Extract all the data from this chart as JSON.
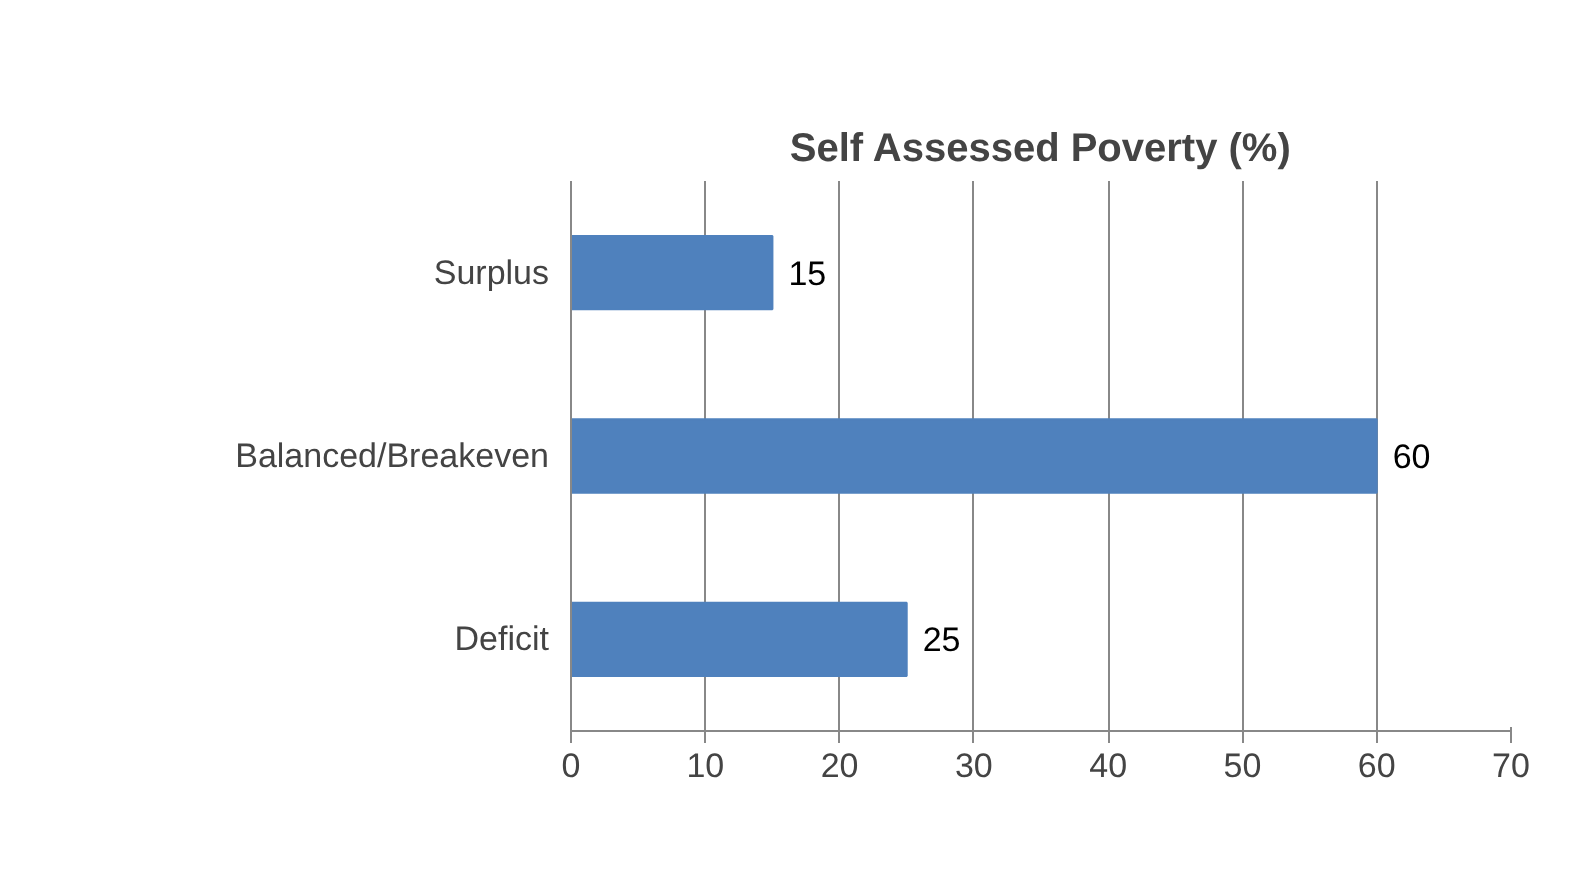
{
  "chart_data": {
    "type": "bar",
    "orientation": "horizontal",
    "title": "Self Assessed Poverty (%)",
    "categories": [
      "Surplus",
      "Balanced/Breakeven",
      "Deficit"
    ],
    "values": [
      15,
      60,
      25
    ],
    "color": "#4f81bd",
    "xlim": [
      0,
      70
    ],
    "xticks": [
      0,
      10,
      20,
      30,
      40,
      50,
      60,
      70
    ],
    "grid": "x",
    "data_labels": true
  }
}
